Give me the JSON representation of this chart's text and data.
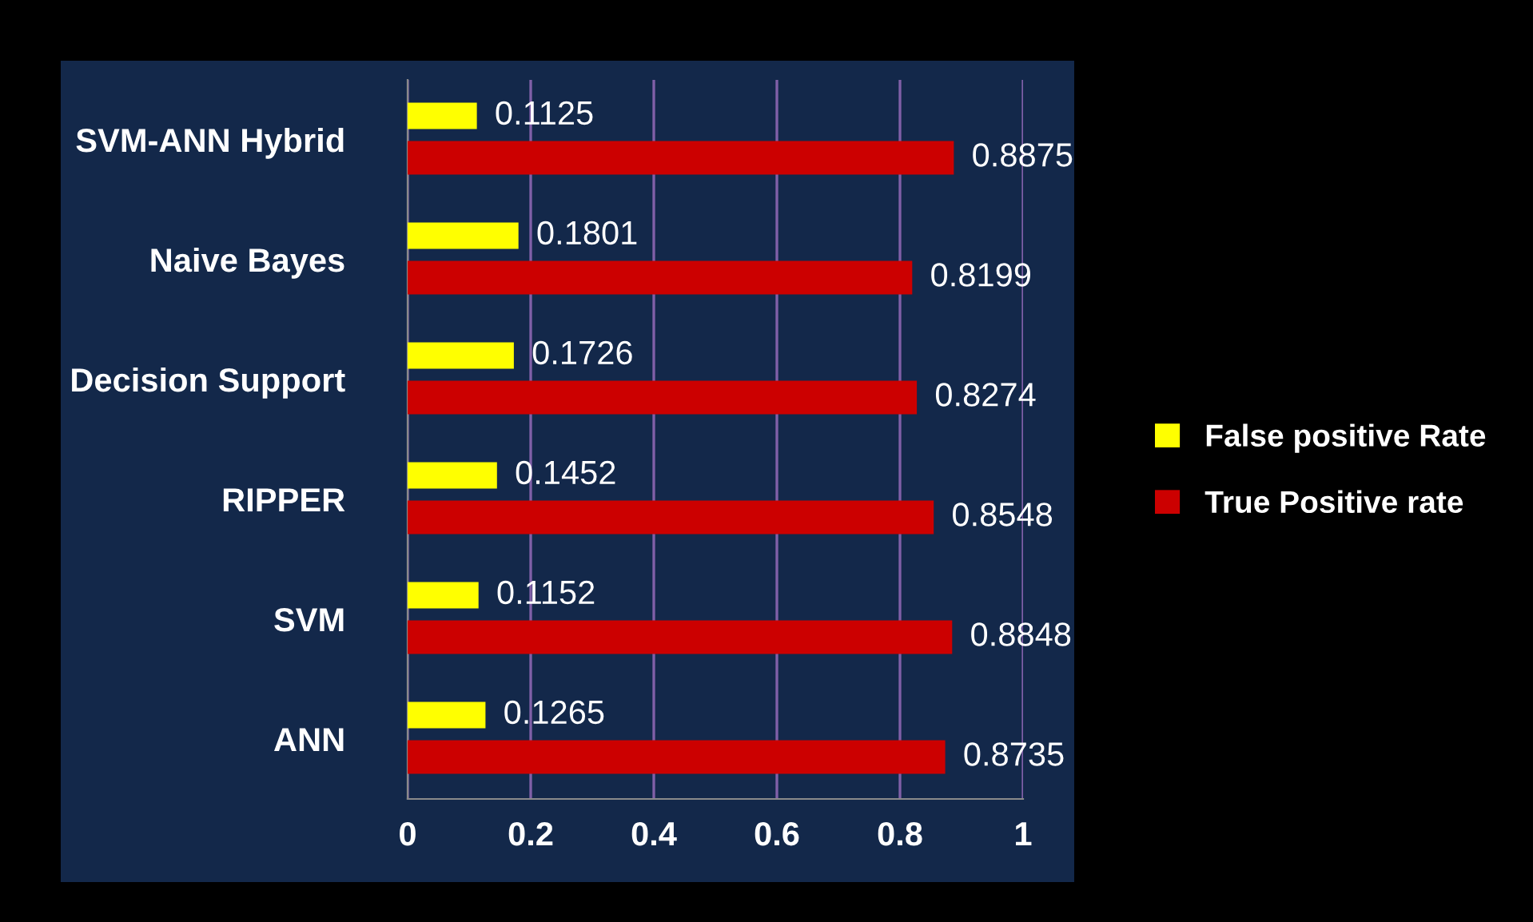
{
  "chart_data": {
    "type": "bar",
    "orientation": "horizontal",
    "categories": [
      "SVM-ANN Hybrid",
      "Naive Bayes",
      "Decision Support",
      "RIPPER",
      "SVM",
      "ANN"
    ],
    "series": [
      {
        "name": "False positive Rate",
        "color": "#ffff00",
        "values": [
          0.1125,
          0.1801,
          0.1726,
          0.1452,
          0.1152,
          0.1265
        ]
      },
      {
        "name": "True Positive rate",
        "color": "#cc0000",
        "values": [
          0.8875,
          0.8199,
          0.8274,
          0.8548,
          0.8848,
          0.8735
        ]
      }
    ],
    "xlim": [
      0,
      1
    ],
    "xticks": [
      0,
      0.2,
      0.4,
      0.6,
      0.8,
      1
    ],
    "grid": "x",
    "legend": "right",
    "data_labels": true
  }
}
